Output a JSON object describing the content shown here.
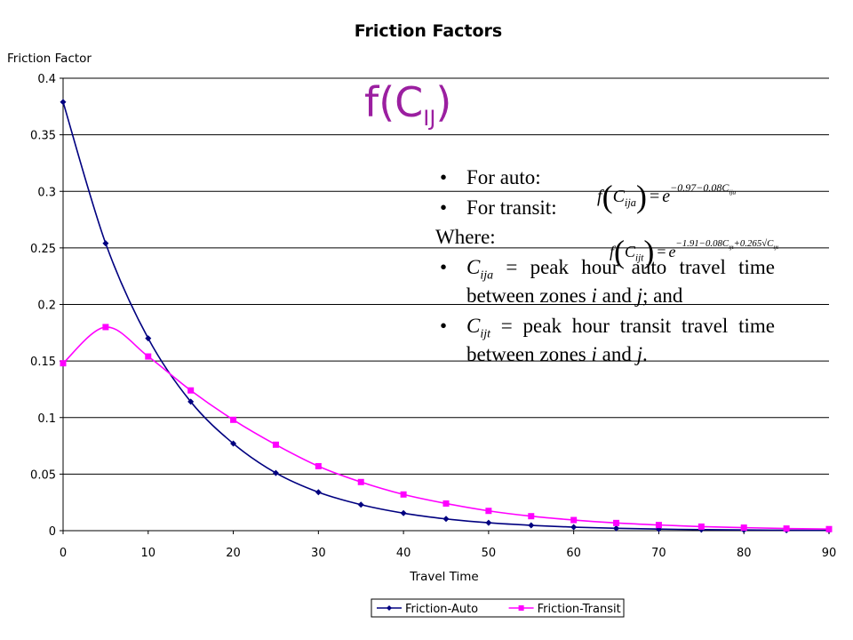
{
  "chart_data": {
    "type": "line",
    "title": "Friction Factors",
    "ylabel": "Friction Factor",
    "xlabel": "Travel Time",
    "xlim": [
      0,
      90
    ],
    "ylim": [
      0,
      0.4
    ],
    "x_ticks": [
      "0",
      "10",
      "20",
      "30",
      "40",
      "50",
      "60",
      "70",
      "80",
      "90"
    ],
    "y_ticks": [
      "0",
      "0.05",
      "0.1",
      "0.15",
      "0.2",
      "0.25",
      "0.3",
      "0.35",
      "0.4"
    ],
    "grid": "horizontal",
    "legend_position": "bottom-right",
    "x": [
      0,
      5,
      10,
      15,
      20,
      25,
      30,
      35,
      40,
      45,
      50,
      55,
      60,
      65,
      70,
      75,
      80,
      85,
      90
    ],
    "series": [
      {
        "name": "Friction-Auto",
        "color": "#000080",
        "marker": "diamond",
        "values": [
          0.379,
          0.254,
          0.17,
          0.114,
          0.077,
          0.051,
          0.034,
          0.023,
          0.0155,
          0.0104,
          0.007,
          0.0047,
          0.0031,
          0.0021,
          0.0014,
          0.0009,
          0.0006,
          0.0004,
          0.0003
        ]
      },
      {
        "name": "Friction-Transit",
        "color": "#ff00ff",
        "marker": "square",
        "values": [
          0.148,
          0.18,
          0.154,
          0.124,
          0.098,
          0.076,
          0.057,
          0.043,
          0.032,
          0.024,
          0.0175,
          0.0128,
          0.0094,
          0.0068,
          0.005,
          0.0036,
          0.0027,
          0.0019,
          0.0014
        ]
      }
    ]
  },
  "slide": {
    "heading": "f(C",
    "heading_sub": "IJ",
    "heading_close": ")",
    "bullet_auto": "For auto:",
    "bullet_transit": "For transit:",
    "where": "Where:",
    "def1_var": "C",
    "def1_sub": "ija",
    "def1_text": " = peak hour auto travel time between zones ",
    "def1_i": "i",
    "def1_and": " and ",
    "def1_j": "j",
    "def1_end": "; and",
    "def2_var": "C",
    "def2_sub": "ijt",
    "def2_text": " = peak hour transit travel time between zones ",
    "def2_i": "i",
    "def2_and": " and ",
    "def2_j": "j",
    "def2_end": ".",
    "eq_auto_exponent": "−0.97−0.08C",
    "eq_auto_exponent_sub": "ija",
    "eq_transit_exponent": "−1.91−0.08C",
    "eq_transit_exponent_sub": "ijt",
    "eq_transit_exponent_tail": "+0.265√C",
    "eq_transit_exponent_tail_sub": "ijt"
  }
}
